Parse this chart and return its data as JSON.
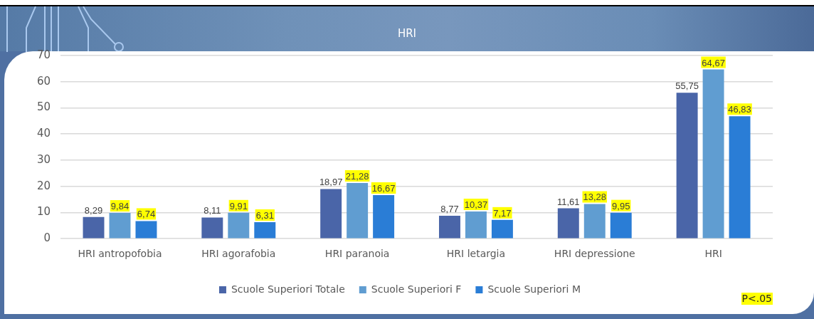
{
  "chart_data": {
    "type": "bar",
    "title": "HRI",
    "categories": [
      "HRI antropofobia",
      "HRI agorafobia",
      "HRI paranoia",
      "HRI letargia",
      "HRI depressione",
      "HRI"
    ],
    "series": [
      {
        "name": "Scuole Superiori Totale",
        "color": "#4a65a8",
        "values": [
          8.29,
          8.11,
          18.97,
          8.77,
          11.61,
          55.75
        ],
        "value_labels": [
          "8,29",
          "8,11",
          "18,97",
          "8,77",
          "11,61",
          "55,75"
        ]
      },
      {
        "name": "Scuole Superiori F",
        "color": "#609dd1",
        "values": [
          9.84,
          9.91,
          21.28,
          10.37,
          13.28,
          64.67
        ],
        "value_labels": [
          "9,84",
          "9,91",
          "21,28",
          "10,37",
          "13,28",
          "64,67"
        ]
      },
      {
        "name": "Scuole Superiori M",
        "color": "#2a7dd6",
        "values": [
          6.74,
          6.31,
          16.67,
          7.17,
          9.95,
          46.83
        ],
        "value_labels": [
          "6,74",
          "6,31",
          "16,67",
          "7,17",
          "9,95",
          "46,83"
        ]
      }
    ],
    "ylim": [
      0,
      70
    ],
    "yticks": [
      0,
      10,
      20,
      30,
      40,
      50,
      60,
      70
    ],
    "grid": "y",
    "legend": "bottom",
    "annotations": [
      "P<.05"
    ]
  }
}
